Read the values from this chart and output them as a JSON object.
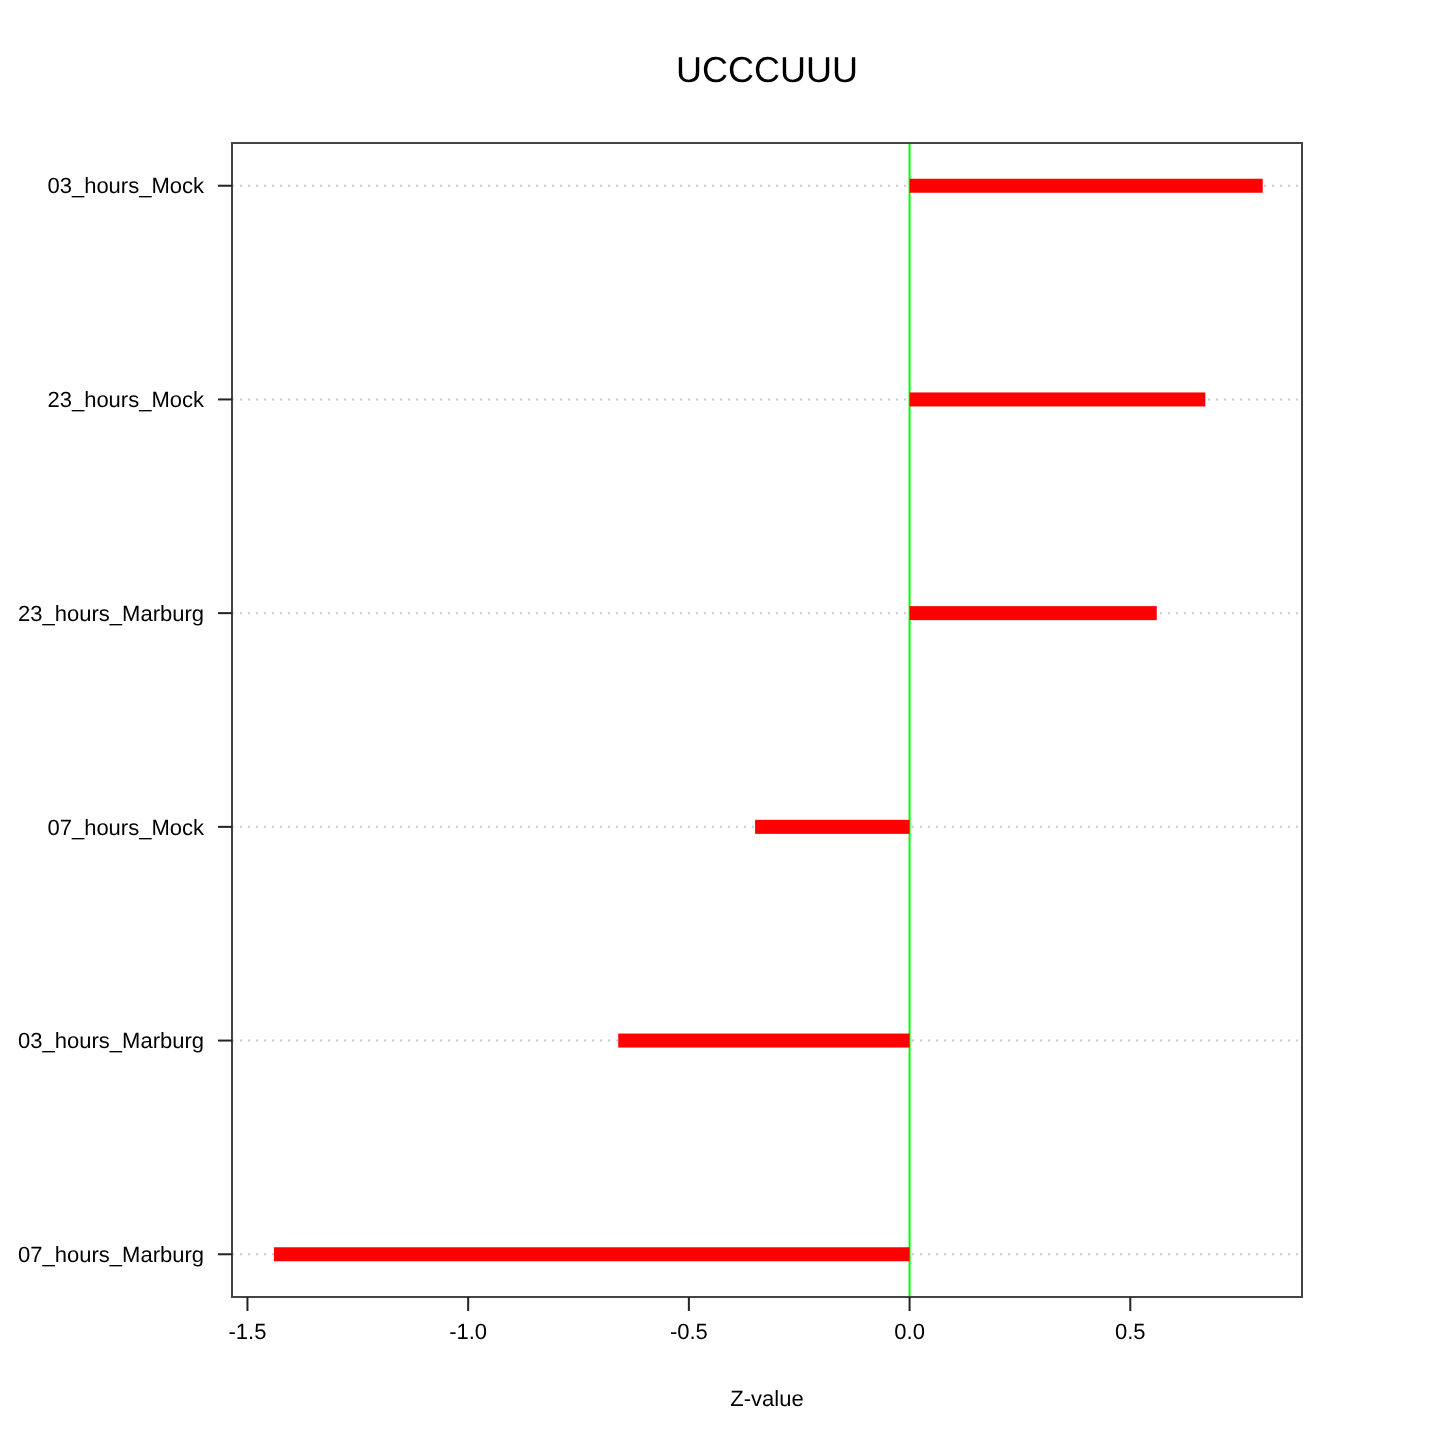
{
  "chart_data": {
    "type": "bar",
    "orientation": "horizontal",
    "title": "UCCCUUU",
    "xlabel": "Z-value",
    "categories": [
      "03_hours_Mock",
      "23_hours_Mock",
      "23_hours_Marburg",
      "07_hours_Mock",
      "03_hours_Marburg",
      "07_hours_Marburg"
    ],
    "values": [
      0.8,
      0.67,
      0.56,
      -0.35,
      -0.66,
      -1.44
    ],
    "color": "#ff0000",
    "xlim": [
      -1.535,
      0.889
    ],
    "xticks": [
      -1.5,
      {
        "value": -1,
        "label": "-1.0"
      },
      -0.5,
      {
        "value": 0,
        "label": "0.0"
      },
      0.5
    ],
    "grid": "y",
    "ref_lines": [
      {
        "axis": "x",
        "value": 0,
        "color": "#00ff00"
      }
    ]
  }
}
